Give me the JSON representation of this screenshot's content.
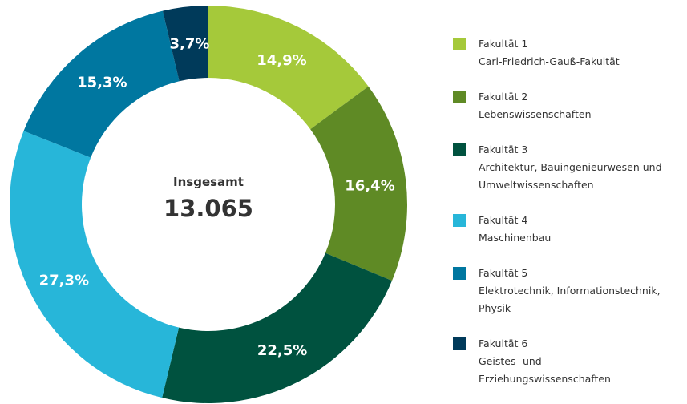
{
  "chart_data": {
    "type": "donut",
    "categories": [
      "Fakultät 1",
      "Fakultät 2",
      "Fakultät 3",
      "Fakultät 4",
      "Fakultät 5",
      "Fakultät 6"
    ],
    "descriptions": [
      "Carl-Friedrich-Gauß-Fakultät",
      "Lebenswissenschaften",
      "Architektur, Bauingenieurwesen und Umweltwissenschaften",
      "Maschinenbau",
      "Elektrotechnik, Informationstechnik, Physik",
      "Geistes- und Erziehungswissenschaften"
    ],
    "values": [
      14.9,
      16.4,
      22.5,
      27.3,
      15.3,
      3.7
    ],
    "value_labels": [
      "14,9%",
      "16,4%",
      "22,5%",
      "27,3%",
      "15,3%",
      "3,7%"
    ],
    "colors": [
      "#a5c93a",
      "#5f8a25",
      "#00523f",
      "#27b6d9",
      "#0077a0",
      "#003a5a"
    ],
    "center_title": "Insgesamt",
    "center_text": "13.065"
  }
}
